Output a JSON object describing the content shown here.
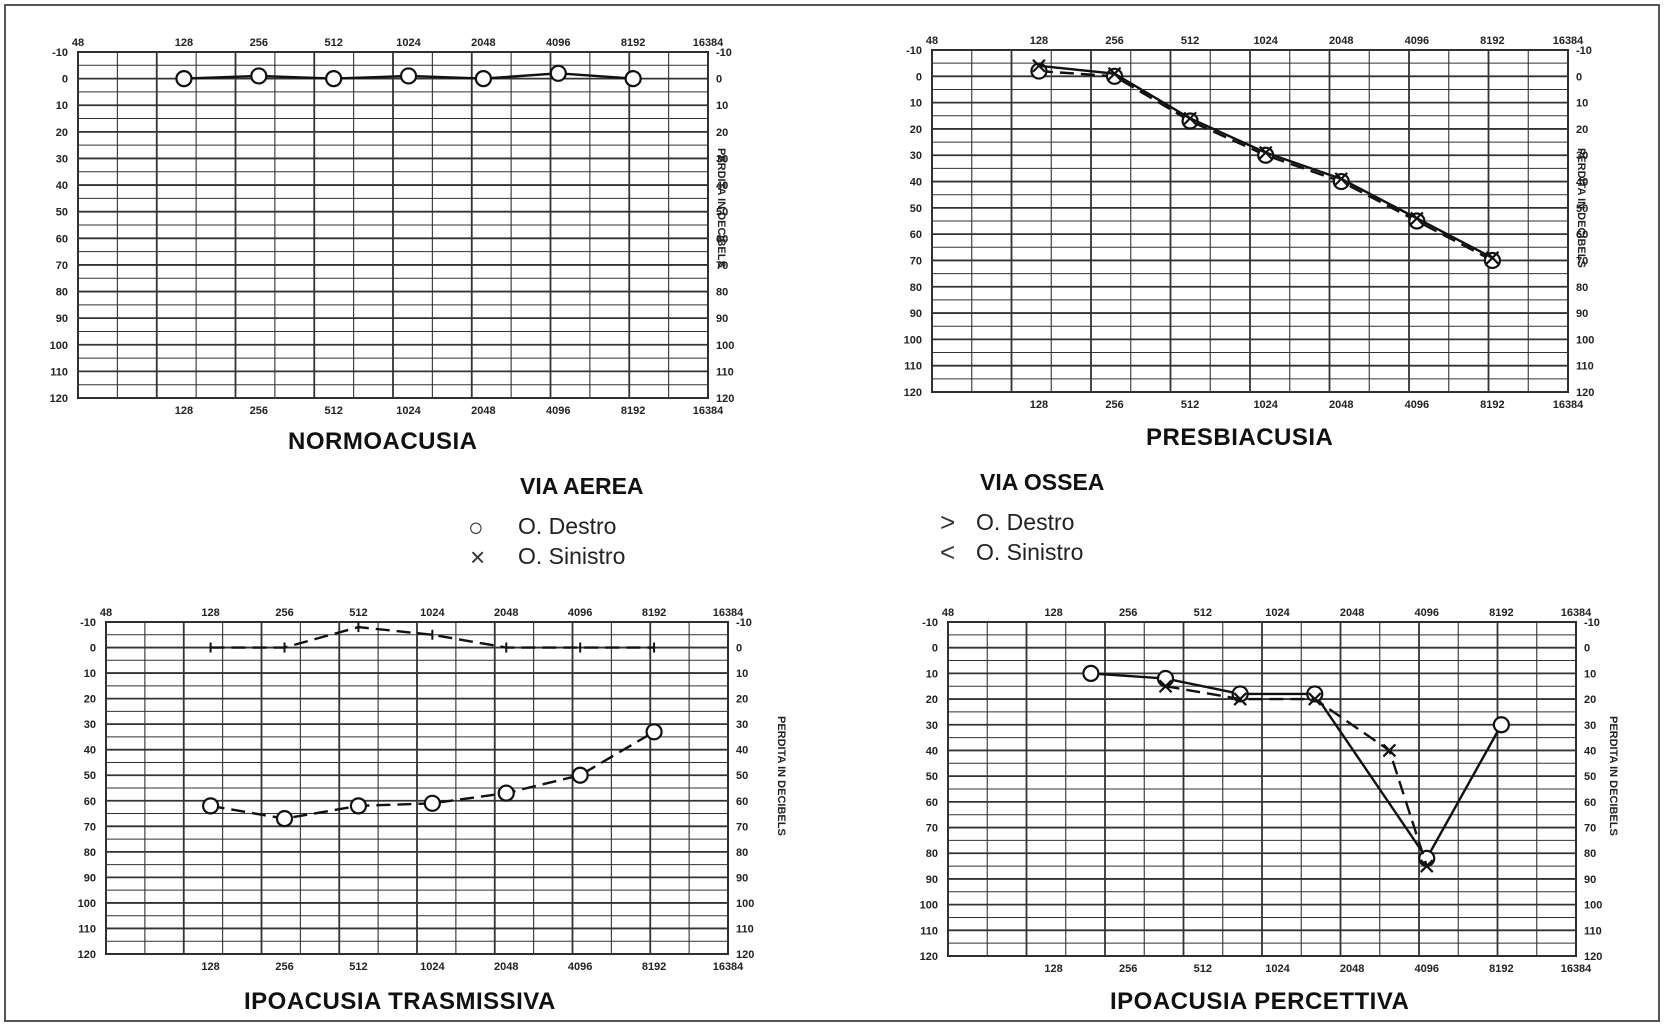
{
  "charts_meta": {
    "freq_ticks": [
      "48",
      "128",
      "256",
      "512",
      "1024",
      "2048",
      "4096",
      "8192",
      "16384"
    ],
    "db_ticks": [
      "-10",
      "0",
      "10",
      "20",
      "30",
      "40",
      "50",
      "60",
      "70",
      "80",
      "90",
      "100",
      "110",
      "120"
    ],
    "right_axis_label": "PERDITA IN DECIBELS"
  },
  "legend": {
    "air": {
      "heading": "VIA AEREA",
      "right_symbol": "○",
      "right_label": "O. Destro",
      "left_symbol": "×",
      "left_label": "O. Sinistro"
    },
    "bone": {
      "heading": "VIA OSSEA",
      "right_symbol": ">",
      "right_label": "O. Destro",
      "left_symbol": "<",
      "left_label": "O. Sinistro"
    }
  },
  "chart_data": [
    {
      "type": "line",
      "title": "NORMOACUSIA",
      "xlabel": "",
      "ylabel": "PERDITA IN DECIBELS",
      "x_scale": "log2",
      "xlim": [
        "48",
        "16384"
      ],
      "ylim": [
        -10,
        120
      ],
      "y_inverted": true,
      "grid": true,
      "series": [
        {
          "marker": "circle",
          "dash": "solid",
          "points": [
            [
              "128",
              0
            ],
            [
              "256",
              -1
            ],
            [
              "512",
              0
            ],
            [
              "1024",
              -1
            ],
            [
              "2048",
              0
            ],
            [
              "4096",
              -2
            ],
            [
              "8192",
              0
            ]
          ]
        }
      ]
    },
    {
      "type": "line",
      "title": "PRESBIACUSIA",
      "xlabel": "",
      "ylabel": "PERDITA IN DECIBELS",
      "x_scale": "log2",
      "xlim": [
        "48",
        "16384"
      ],
      "ylim": [
        -10,
        120
      ],
      "y_inverted": true,
      "grid": true,
      "series": [
        {
          "marker": "circle",
          "dash": "dashed",
          "points": [
            [
              "128",
              -2
            ],
            [
              "256",
              0
            ],
            [
              "512",
              17
            ],
            [
              "1024",
              30
            ],
            [
              "2048",
              40
            ],
            [
              "4096",
              55
            ],
            [
              "8192",
              70
            ]
          ]
        },
        {
          "marker": "x",
          "dash": "solid",
          "points": [
            [
              "128",
              -4
            ],
            [
              "256",
              -1
            ],
            [
              "512",
              16
            ],
            [
              "1024",
              29
            ],
            [
              "2048",
              39
            ],
            [
              "4096",
              54
            ],
            [
              "8192",
              69
            ]
          ]
        }
      ]
    },
    {
      "type": "line",
      "title": "IPOACUSIA TRASMISSIVA",
      "xlabel": "",
      "ylabel": "PERDITA IN DECIBELS",
      "x_scale": "log2",
      "xlim": [
        "48",
        "16384"
      ],
      "ylim": [
        -10,
        120
      ],
      "y_inverted": true,
      "grid": true,
      "series": [
        {
          "marker": "circle",
          "dash": "dashed",
          "points": [
            [
              "128",
              62
            ],
            [
              "256",
              67
            ],
            [
              "512",
              62
            ],
            [
              "1024",
              61
            ],
            [
              "2048",
              57
            ],
            [
              "4096",
              50
            ],
            [
              "8192",
              33
            ]
          ]
        },
        {
          "marker": "tick",
          "dash": "dashed",
          "points": [
            [
              "128",
              0
            ],
            [
              "256",
              0
            ],
            [
              "512",
              -8
            ],
            [
              "1024",
              -5
            ],
            [
              "2048",
              0
            ],
            [
              "4096",
              0
            ],
            [
              "8192",
              0
            ]
          ]
        }
      ]
    },
    {
      "type": "line",
      "title": "IPOACUSIA PERCETTIVA",
      "xlabel": "",
      "ylabel": "PERDITA IN DECIBELS",
      "x_scale": "log2",
      "xlim": [
        "48",
        "16384"
      ],
      "ylim": [
        -10,
        120
      ],
      "y_inverted": true,
      "grid": true,
      "series": [
        {
          "marker": "circle",
          "dash": "solid",
          "points": [
            [
              "181",
              10
            ],
            [
              "362",
              12
            ],
            [
              "724",
              18
            ],
            [
              "1448",
              18
            ],
            [
              "4096",
              82
            ],
            [
              "8192",
              30
            ]
          ]
        },
        {
          "marker": "x",
          "dash": "dashed",
          "points": [
            [
              "362",
              15
            ],
            [
              "724",
              20
            ],
            [
              "1448",
              20
            ],
            [
              "2896",
              40
            ],
            [
              "4096",
              85
            ]
          ]
        }
      ]
    }
  ]
}
